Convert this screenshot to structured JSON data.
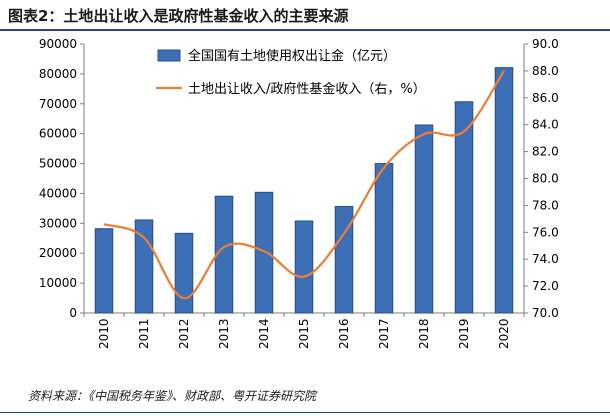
{
  "figure": {
    "title": "图表2：土地出让收入是政府性基金收入的主要来源",
    "source": "资料来源：《中国税务年鉴》、财政部、粤开证券研究院"
  },
  "colors": {
    "bar": "#3d6fb6",
    "bar_edge": "#2b4f86",
    "line": "#ed7d31",
    "rule": "#2f3f8f"
  },
  "chart_data": {
    "type": "bar",
    "categories": [
      "2010",
      "2011",
      "2012",
      "2013",
      "2014",
      "2015",
      "2016",
      "2017",
      "2018",
      "2019",
      "2020"
    ],
    "series": [
      {
        "name": "全国国有土地使用权出让金（亿元）",
        "type": "bar",
        "axis": "left",
        "values": [
          28198,
          31140,
          26652,
          39073,
          40380,
          30784,
          35640,
          49997,
          62911,
          70679,
          82094
        ]
      },
      {
        "name": "土地出让收入/政府性基金收入（右，%）",
        "type": "line",
        "axis": "right",
        "values": [
          76.6,
          75.6,
          71.1,
          74.9,
          74.6,
          72.7,
          75.9,
          80.8,
          83.3,
          83.5,
          88.0
        ]
      }
    ],
    "y_left": {
      "range": [
        0,
        90000
      ],
      "ticks": [
        "0",
        "10000",
        "20000",
        "30000",
        "40000",
        "50000",
        "60000",
        "70000",
        "80000",
        "90000"
      ]
    },
    "y_right": {
      "range": [
        70,
        90
      ],
      "ticks": [
        "70.0",
        "72.0",
        "74.0",
        "76.0",
        "78.0",
        "80.0",
        "82.0",
        "84.0",
        "86.0",
        "88.0",
        "90.0"
      ]
    },
    "legend": [
      "全国国有土地使用权出让金（亿元）",
      "土地出让收入/政府性基金收入（右，%）"
    ],
    "legend_position": "top-center"
  }
}
